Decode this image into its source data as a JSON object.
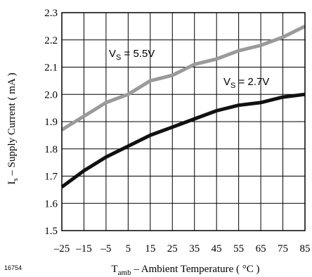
{
  "chart_data": {
    "type": "line",
    "xlabel": "T",
    "xlabel_sub": "amb",
    "xlabel_rest": " – Ambient Temperature ( °C )",
    "ylabel": "I",
    "ylabel_sub": "s",
    "ylabel_rest": " – Supply Current ( mA )",
    "figure_id": "16754",
    "xlim": [
      -25,
      85
    ],
    "ylim": [
      1.5,
      2.3
    ],
    "x_ticks": [
      "–25",
      "–15",
      "–5",
      "5",
      "15",
      "25",
      "35",
      "45",
      "55",
      "65",
      "75",
      "85"
    ],
    "x_tick_values": [
      -25,
      -15,
      -5,
      5,
      15,
      25,
      35,
      45,
      55,
      65,
      75,
      85
    ],
    "y_ticks": [
      "1.5",
      "1.6",
      "1.7",
      "1.8",
      "1.9",
      "2.0",
      "2.1",
      "2.2",
      "2.3"
    ],
    "y_tick_values": [
      1.5,
      1.6,
      1.7,
      1.8,
      1.9,
      2.0,
      2.1,
      2.2,
      2.3
    ],
    "grid": true,
    "series": [
      {
        "label_main": "V",
        "label_sub": "S",
        "label_rest": " = 5.5V",
        "color": "#9a9a9a",
        "x": [
          -25,
          -15,
          -5,
          5,
          15,
          25,
          35,
          45,
          55,
          65,
          75,
          85
        ],
        "y": [
          1.87,
          1.92,
          1.97,
          2.0,
          2.05,
          2.07,
          2.11,
          2.13,
          2.16,
          2.18,
          2.21,
          2.25
        ]
      },
      {
        "label_main": "V",
        "label_sub": "S",
        "label_rest": " = 2.7V",
        "color": "#111111",
        "x": [
          -25,
          -15,
          -5,
          5,
          15,
          25,
          35,
          45,
          55,
          65,
          75,
          85
        ],
        "y": [
          1.66,
          1.72,
          1.77,
          1.81,
          1.85,
          1.88,
          1.91,
          1.94,
          1.96,
          1.97,
          1.99,
          2.0
        ]
      }
    ]
  }
}
